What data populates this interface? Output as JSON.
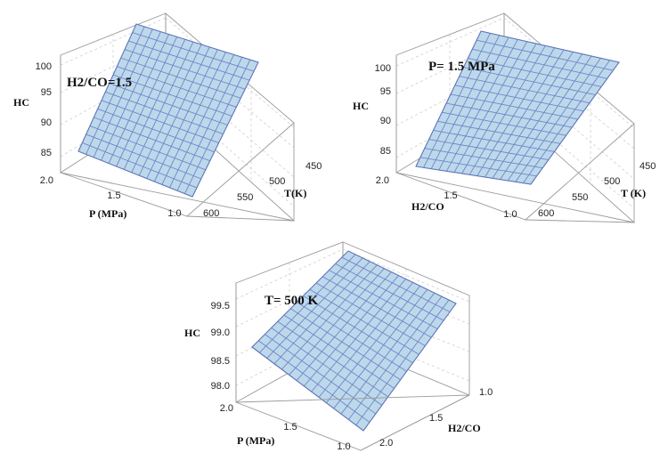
{
  "chart_data": [
    {
      "type": "surface",
      "annotation": "H2/CO=1.5",
      "zlabel": "HC",
      "xlabel": "P (MPa)",
      "ylabel": "T(K)",
      "x_ticks": [
        "2.0",
        "1.5",
        "1.0"
      ],
      "y_ticks": [
        "450",
        "500",
        "550",
        "600"
      ],
      "z_ticks": [
        "85",
        "90",
        "95",
        "100"
      ],
      "x_range": [
        1.0,
        2.0
      ],
      "y_range": [
        450,
        600
      ],
      "z_range": [
        83,
        100
      ],
      "corner_values": {
        "P2.0_T600": 84.5,
        "P1.0_T600": 82.5,
        "P2.0_T450": 101.5,
        "P1.0_T450": 99.5
      }
    },
    {
      "type": "surface",
      "annotation": "P= 1.5 MPa",
      "zlabel": "HC",
      "xlabel": "H2/CO",
      "ylabel": "T (K)",
      "x_ticks": [
        "2.0",
        "1.5",
        "1.0"
      ],
      "y_ticks": [
        "450",
        "500",
        "550",
        "600"
      ],
      "z_ticks": [
        "85",
        "90",
        "95",
        "100"
      ],
      "x_range": [
        1.0,
        2.0
      ],
      "y_range": [
        450,
        600
      ],
      "z_range": [
        83,
        100
      ],
      "corner_values": {
        "H2.0_T600": 84.0,
        "H1.0_T600": 82.5,
        "H2.0_T450": 101.0,
        "H1.0_T450": 99.5
      }
    },
    {
      "type": "surface",
      "annotation": "T= 500 K",
      "zlabel": "HC",
      "xlabel": "P (MPa)",
      "ylabel": "H2/CO",
      "x_ticks": [
        "2.0",
        "1.5",
        "1.0"
      ],
      "y_ticks": [
        "1.0",
        "1.5",
        "2.0"
      ],
      "z_ticks": [
        "98.0",
        "98.5",
        "99.0",
        "99.5"
      ],
      "x_range": [
        1.0,
        2.0
      ],
      "y_range": [
        1.0,
        2.0
      ],
      "z_range": [
        97.8,
        99.8
      ],
      "corner_values": {
        "P2.0_H2.0": 98.7,
        "P1.0_H2.0": 97.7,
        "P2.0_H1.0": 99.9,
        "P1.0_H1.0": 99.35
      }
    }
  ]
}
